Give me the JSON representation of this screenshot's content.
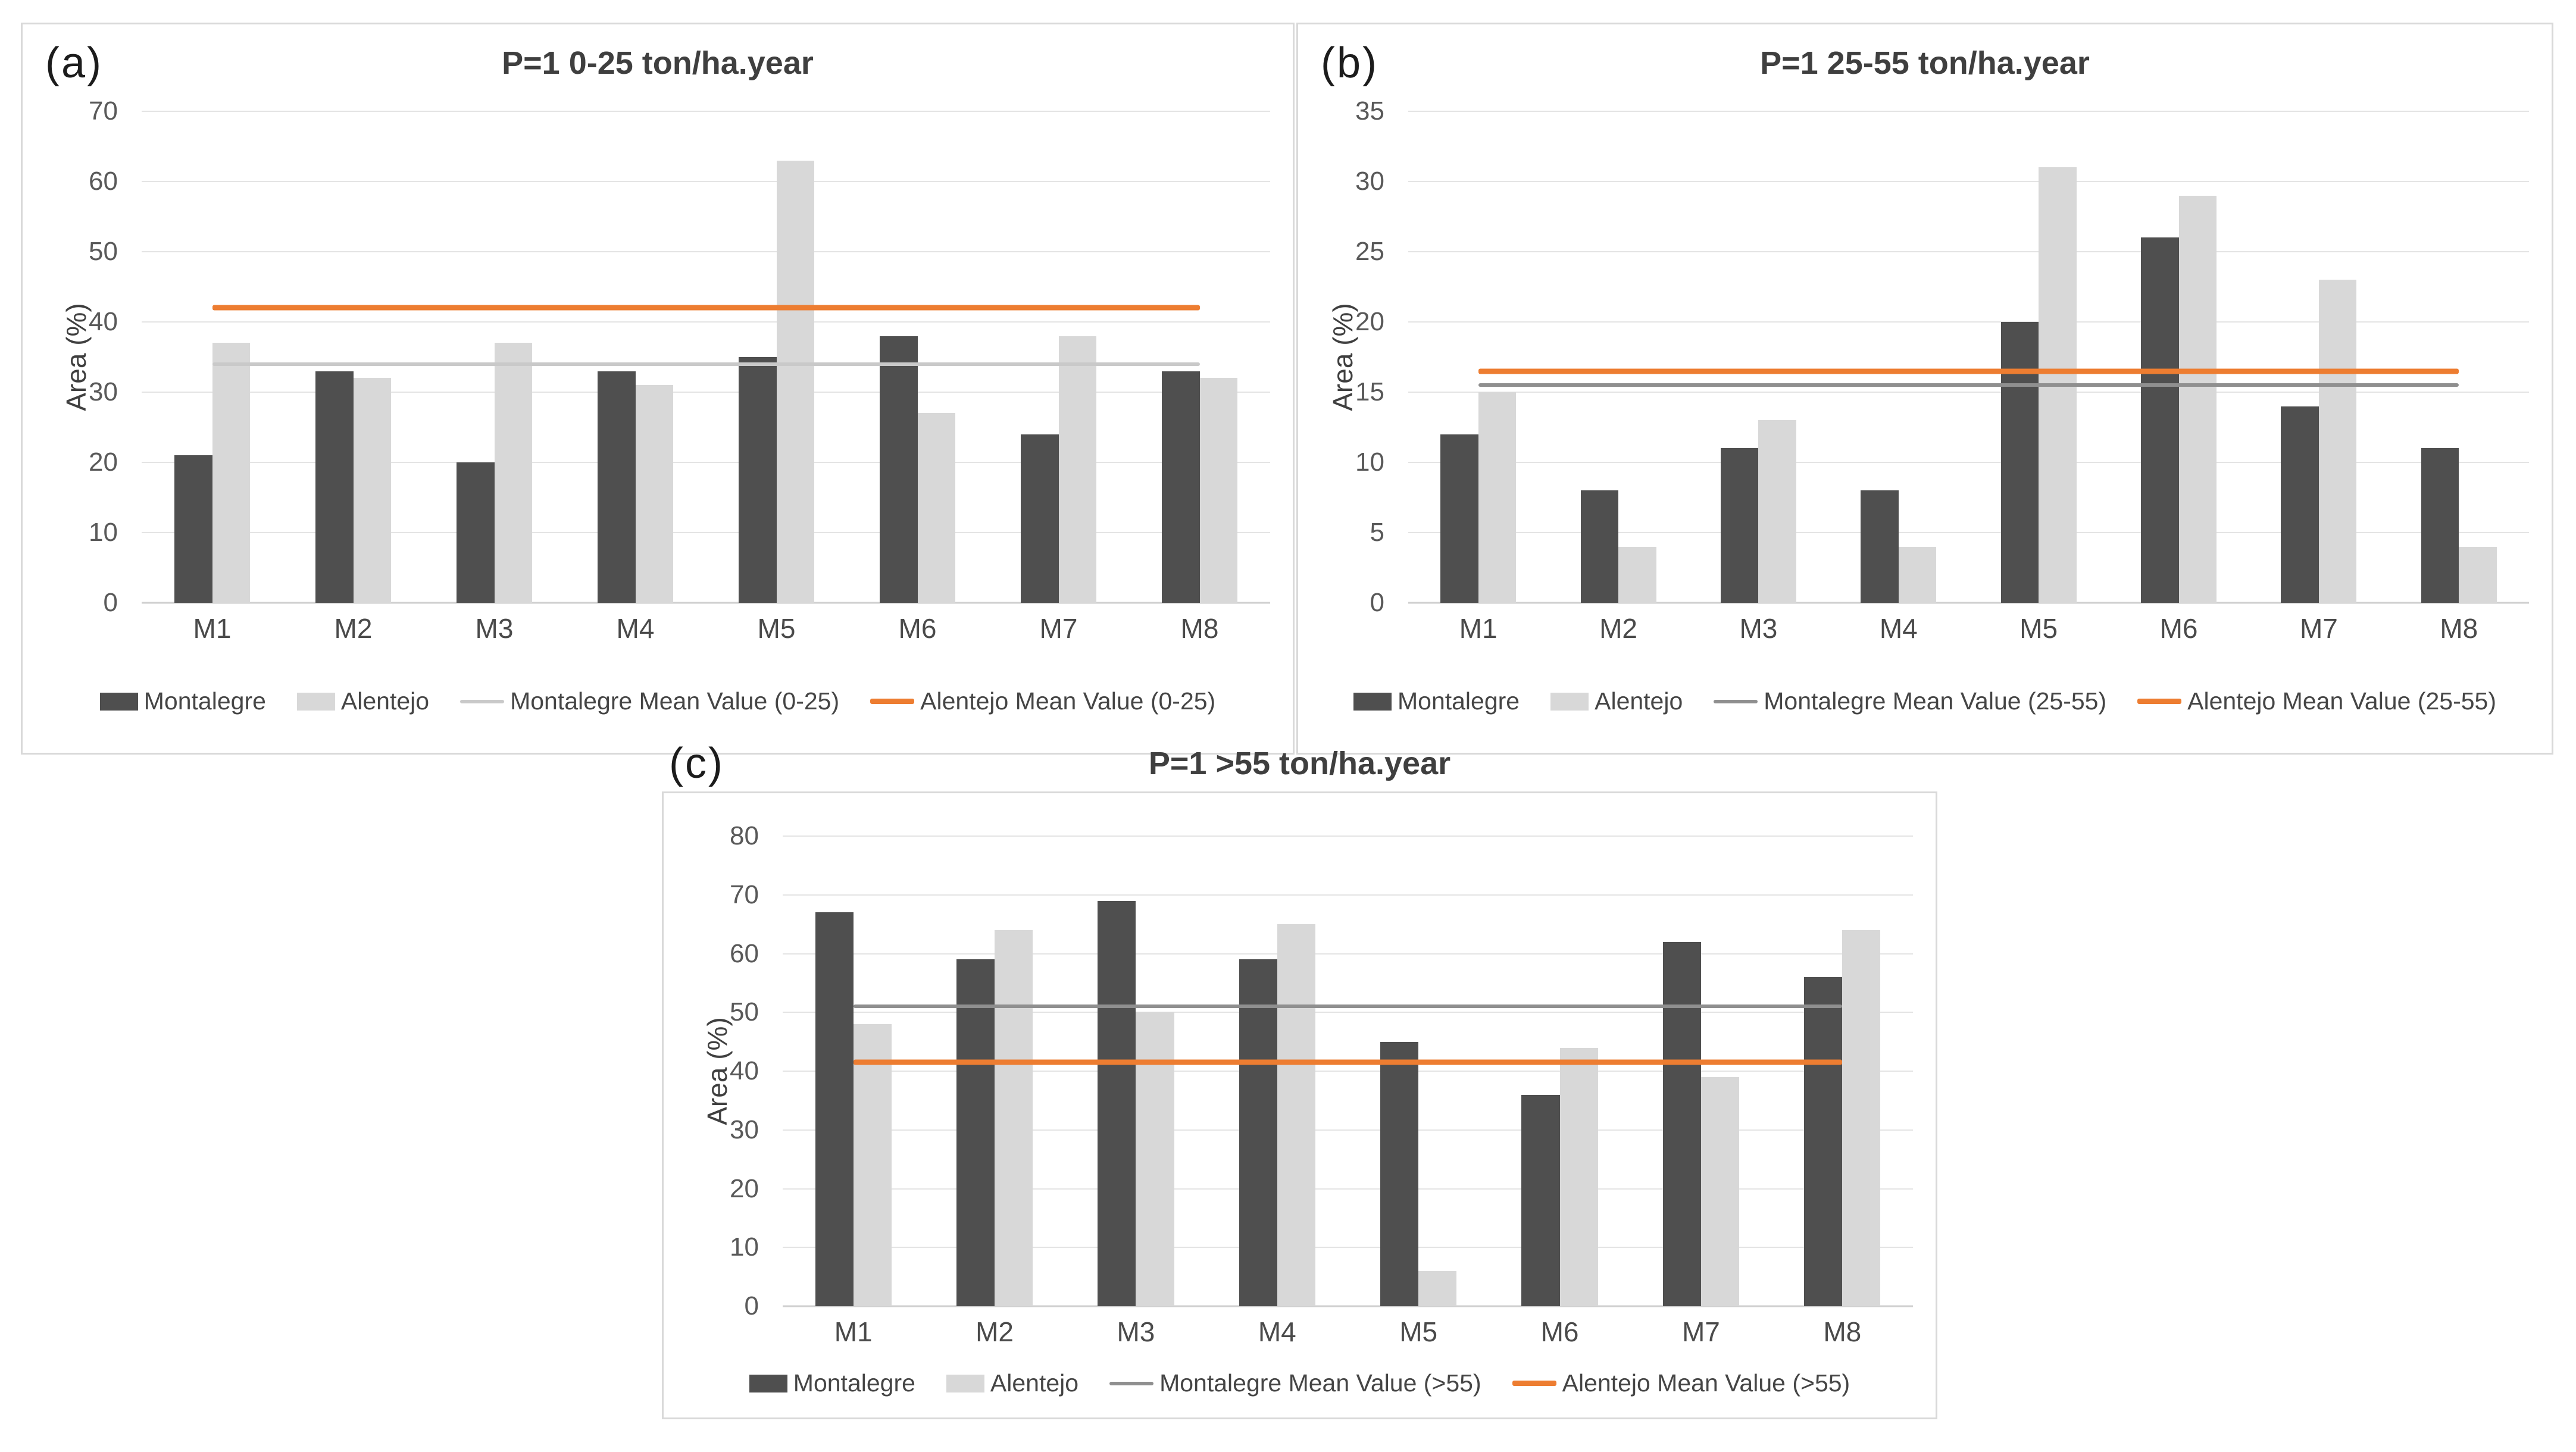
{
  "colors": {
    "panel_border": "#d9d9d9",
    "gridline": "#e4e4e4",
    "axis_line": "#cfcfcf",
    "tick_text": "#595959",
    "label_text": "#4a4a4a",
    "title_text": "#3f3f3f",
    "montalegre_bar": "#4f4f4f",
    "alentejo_bar": "#d8d8d8",
    "orange_line": "#ed7d31"
  },
  "chart_data": [
    {
      "id": "a",
      "type": "bar",
      "corner_label": "(a)",
      "title": "P=1 0-25 ton/ha.year",
      "ylabel": "Area (%)",
      "ylim": [
        0,
        70
      ],
      "ytick_step": 10,
      "grid": true,
      "legend_position": "bottom",
      "categories": [
        "M1",
        "M2",
        "M3",
        "M4",
        "M5",
        "M6",
        "M7",
        "M8"
      ],
      "series": [
        {
          "name": "Montalegre",
          "color": "#4f4f4f",
          "values": [
            21,
            33,
            20,
            33,
            35,
            38,
            24,
            33
          ]
        },
        {
          "name": "Alentejo",
          "color": "#d8d8d8",
          "values": [
            37,
            32,
            37,
            31,
            63,
            27,
            38,
            32
          ]
        }
      ],
      "mean_lines": [
        {
          "name": "Montalegre Mean Value (0-25)",
          "value": 34,
          "color": "#c9c9c9",
          "thickness": 6
        },
        {
          "name": "Alentejo Mean Value (0-25)",
          "value": 42,
          "color": "#ed7d31",
          "thickness": 9
        }
      ]
    },
    {
      "id": "b",
      "type": "bar",
      "corner_label": "(b)",
      "title": "P=1 25-55 ton/ha.year",
      "ylabel": "Area (%)",
      "ylim": [
        0,
        35
      ],
      "ytick_step": 5,
      "grid": true,
      "legend_position": "bottom",
      "categories": [
        "M1",
        "M2",
        "M3",
        "M4",
        "M5",
        "M6",
        "M7",
        "M8"
      ],
      "series": [
        {
          "name": "Montalegre",
          "color": "#4f4f4f",
          "values": [
            12,
            8,
            11,
            8,
            20,
            26,
            14,
            11
          ]
        },
        {
          "name": "Alentejo",
          "color": "#d8d8d8",
          "values": [
            15,
            4,
            13,
            4,
            31,
            29,
            23,
            4
          ]
        }
      ],
      "mean_lines": [
        {
          "name": "Montalegre Mean Value (25-55)",
          "value": 15.5,
          "color": "#8f8f8f",
          "thickness": 6
        },
        {
          "name": "Alentejo Mean Value (25-55)",
          "value": 16.5,
          "color": "#ed7d31",
          "thickness": 9
        }
      ]
    },
    {
      "id": "c",
      "type": "bar",
      "corner_label": "(c)",
      "title": "P=1 >55 ton/ha.year",
      "ylabel": "Area (%)",
      "ylim": [
        0,
        80
      ],
      "ytick_step": 10,
      "grid": true,
      "legend_position": "bottom",
      "categories": [
        "M1",
        "M2",
        "M3",
        "M4",
        "M5",
        "M6",
        "M7",
        "M8"
      ],
      "series": [
        {
          "name": "Montalegre",
          "color": "#4f4f4f",
          "values": [
            67,
            59,
            69,
            59,
            45,
            36,
            62,
            56
          ]
        },
        {
          "name": "Alentejo",
          "color": "#d8d8d8",
          "values": [
            48,
            64,
            50,
            65,
            6,
            44,
            39,
            64
          ]
        }
      ],
      "mean_lines": [
        {
          "name": "Montalegre Mean Value (>55)",
          "value": 51,
          "color": "#8f8f8f",
          "thickness": 6
        },
        {
          "name": "Alentejo Mean Value (>55)",
          "value": 41.5,
          "color": "#ed7d31",
          "thickness": 9
        }
      ]
    }
  ]
}
